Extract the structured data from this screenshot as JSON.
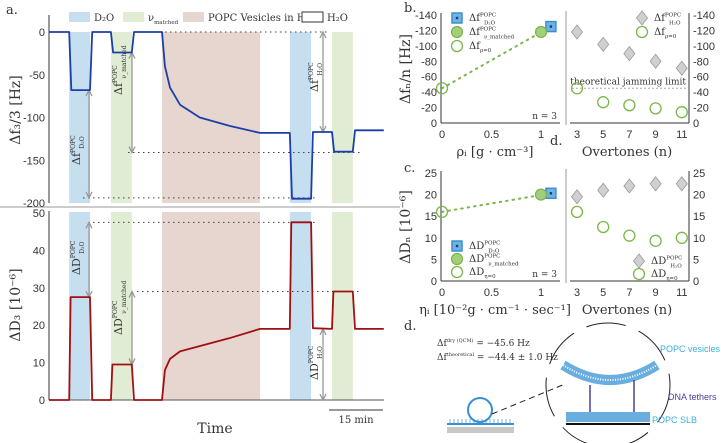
{
  "panel_labels": {
    "a": "a.",
    "b": "b.",
    "c": "c.",
    "d1": "d.",
    "d2": "d."
  },
  "colors": {
    "d2o": "#c5dff0",
    "matched": "#e0ecd3",
    "popc": "#e6d6cf",
    "freq_trace": "#1a3fa8",
    "diss_trace": "#a01010",
    "green": "#7ab648",
    "blue": "#3b8fd0",
    "gray_marker": "#d0d0d0",
    "arrow": "#999999",
    "cyan": "#3ab0d8",
    "purple": "#4a3fa0"
  },
  "chart_data": [
    {
      "id": "a-frequency",
      "type": "line",
      "xlabel": "",
      "ylabel": "Δf₃/3 [Hz]",
      "ylim": [
        -200,
        0
      ],
      "yticks": [
        "0",
        "-50",
        "-100",
        "-150",
        "-200"
      ],
      "ytick_values": [
        0,
        -50,
        -100,
        -150,
        -200
      ],
      "legend": [
        {
          "key": "d2o",
          "label": "D₂O"
        },
        {
          "key": "matched",
          "label": "ν_matched"
        },
        {
          "key": "popc",
          "label": "POPC Vesicles in H₂O"
        },
        {
          "key": "h2o",
          "label": "H₂O"
        }
      ],
      "bands_min": [
        {
          "key": "d2o",
          "start": 5.6,
          "end": 11.4
        },
        {
          "key": "matched",
          "start": 17.2,
          "end": 23.0
        },
        {
          "key": "popc",
          "start": 31.4,
          "end": 58.6
        },
        {
          "key": "d2o",
          "start": 66.9,
          "end": 72.8
        },
        {
          "key": "matched",
          "start": 78.6,
          "end": 84.4
        }
      ],
      "series": [
        {
          "x_min": [
            0,
            5.6,
            6.2,
            11.4,
            12.0,
            17.2,
            17.8,
            23.0,
            23.6,
            31.4,
            32.2,
            33.6,
            36.4,
            41.9,
            50.3,
            58.6,
            66.9,
            67.5,
            72.8,
            73.3,
            78.6,
            79.2,
            84.4,
            85.0,
            93.0
          ],
          "y": [
            0,
            0,
            -68,
            -68,
            0,
            0,
            -24,
            -24,
            0,
            0,
            -40,
            -65,
            -85,
            -100,
            -110,
            -118,
            -118,
            -195,
            -195,
            -117,
            -117,
            -140,
            -140,
            -115,
            -115
          ]
        }
      ],
      "annotations": [
        {
          "base": "Δf",
          "sup": "POPC",
          "sub": "D₂O",
          "color": "blue"
        },
        {
          "base": "Δf",
          "sup": "POPC",
          "sub": "ν_matched",
          "color": "green"
        },
        {
          "base": "Δf",
          "sup": "POPC",
          "sub": "H₂O",
          "color": "arrow"
        }
      ]
    },
    {
      "id": "a-dissipation",
      "type": "line",
      "xlabel": "Time",
      "ylabel": "ΔD₃ [10⁻⁶]",
      "ylim": [
        0,
        50
      ],
      "yticks": [
        "50",
        "40",
        "30",
        "20",
        "10",
        "0"
      ],
      "ytick_values": [
        50,
        40,
        30,
        20,
        10,
        0
      ],
      "scale_bar": "15 min",
      "series": [
        {
          "x_min": [
            0,
            5.6,
            6.0,
            11.4,
            12.0,
            17.2,
            17.6,
            23.0,
            23.6,
            31.4,
            32.2,
            33.6,
            36.4,
            50.0,
            58.6,
            66.9,
            67.3,
            72.8,
            73.3,
            78.6,
            79.0,
            84.4,
            85.0,
            93.0
          ],
          "y": [
            0,
            0,
            27.5,
            27.5,
            0,
            0,
            9.5,
            9.5,
            0,
            0,
            8,
            11,
            13,
            16.5,
            19,
            19,
            47.5,
            47.5,
            19.2,
            19,
            29,
            29,
            19,
            19
          ]
        }
      ],
      "annotations": [
        {
          "base": "ΔD",
          "sup": "POPC",
          "sub": "D₂O",
          "color": "blue"
        },
        {
          "base": "ΔD",
          "sup": "POPC",
          "sub": "ν_matched",
          "color": "green"
        },
        {
          "base": "ΔD",
          "sup": "POPC",
          "sub": "H₂O",
          "color": "arrow"
        }
      ]
    },
    {
      "id": "b-left",
      "type": "scatter",
      "xlabel": "ρᵢ [g · cm⁻³]",
      "ylabel": "Δfₙ/n [Hz]",
      "xlim": [
        0,
        1.2
      ],
      "ylim": [
        0,
        140
      ],
      "xticks": [
        "0",
        "0.5",
        "1"
      ],
      "xtick_values": [
        0,
        0.5,
        1
      ],
      "yticks": [
        "-140",
        "-120",
        "-100",
        "-80",
        "-60",
        "-40",
        "-20",
        "0"
      ],
      "ytick_values": [
        140,
        120,
        100,
        80,
        60,
        40,
        20,
        0
      ],
      "note": "n = 3",
      "points": [
        {
          "x": 1.1,
          "y": 125,
          "marker": "square",
          "legend": {
            "base": "Δf",
            "sup": "POPC",
            "sub": "D₂O"
          }
        },
        {
          "x": 1.0,
          "y": 118,
          "marker": "filled-circle",
          "legend": {
            "base": "Δf",
            "sup": "POPC",
            "sub": "ν_matched"
          }
        },
        {
          "x": 0,
          "y": 45,
          "marker": "open-circle",
          "legend": {
            "base": "Δf",
            "sup": "",
            "sub": "ρ=0"
          }
        }
      ]
    },
    {
      "id": "b-right",
      "type": "scatter",
      "xlabel": "Overtones (n)",
      "xlim": [
        3,
        11
      ],
      "ylim": [
        0,
        140
      ],
      "xticks": [
        "3",
        "5",
        "7",
        "9",
        "11"
      ],
      "xtick_values": [
        3,
        5,
        7,
        9,
        11
      ],
      "yticks": [
        "-140",
        "-120",
        "-100",
        "-80",
        "-60",
        "-40",
        "-20",
        "0"
      ],
      "ytick_values": [
        140,
        120,
        100,
        80,
        60,
        40,
        20,
        0
      ],
      "reference_line": {
        "y": 45,
        "label": "theoretical jamming limit"
      },
      "series": [
        {
          "marker": "diamond",
          "legend": {
            "base": "Δf",
            "sup": "POPC",
            "sub": "H₂O"
          },
          "x": [
            3,
            5,
            7,
            9,
            11
          ],
          "y": [
            118,
            102,
            90,
            80,
            71
          ]
        },
        {
          "marker": "open-circle",
          "legend": {
            "base": "Δf",
            "sup": "",
            "sub": "ρ=0"
          },
          "x": [
            3,
            5,
            7,
            9,
            11
          ],
          "y": [
            45,
            27,
            23,
            19,
            14
          ]
        }
      ]
    },
    {
      "id": "c-left",
      "type": "scatter",
      "xlabel": "ηᵢ [10⁻²g · cm⁻¹ · sec⁻¹]",
      "ylabel": "ΔDₙ [10⁻⁶]",
      "xlim": [
        0,
        1.2
      ],
      "ylim": [
        0,
        25
      ],
      "xticks": [
        "0",
        "0.5",
        "1"
      ],
      "xtick_values": [
        0,
        0.5,
        1
      ],
      "yticks": [
        "25",
        "20",
        "15",
        "10",
        "5",
        "0"
      ],
      "ytick_values": [
        25,
        20,
        15,
        10,
        5,
        0
      ],
      "note": "n = 3",
      "points": [
        {
          "x": 1.1,
          "y": 20.3,
          "marker": "square",
          "legend": {
            "base": "ΔD",
            "sup": "POPC",
            "sub": "D₂O"
          }
        },
        {
          "x": 1.0,
          "y": 20,
          "marker": "filled-circle",
          "legend": {
            "base": "ΔD",
            "sup": "POPC",
            "sub": "ν_matched"
          }
        },
        {
          "x": 0,
          "y": 16,
          "marker": "open-circle",
          "legend": {
            "base": "ΔD",
            "sup": "",
            "sub": "η=0"
          }
        }
      ]
    },
    {
      "id": "c-right",
      "type": "scatter",
      "xlabel": "Overtones (n)",
      "xlim": [
        3,
        11
      ],
      "ylim": [
        0,
        25
      ],
      "xticks": [
        "3",
        "5",
        "7",
        "9",
        "11"
      ],
      "xtick_values": [
        3,
        5,
        7,
        9,
        11
      ],
      "yticks": [
        "25",
        "20",
        "15",
        "10",
        "5",
        "0"
      ],
      "ytick_values": [
        25,
        20,
        15,
        10,
        5,
        0
      ],
      "series": [
        {
          "marker": "diamond",
          "legend": {
            "base": "ΔD",
            "sup": "POPC",
            "sub": "H₂O"
          },
          "x": [
            3,
            5,
            7,
            9,
            11
          ],
          "y": [
            19.5,
            21,
            22,
            22.5,
            22.5
          ]
        },
        {
          "marker": "open-circle",
          "legend": {
            "base": "ΔD",
            "sup": "",
            "sub": "η=0"
          },
          "x": [
            3,
            5,
            7,
            9,
            11
          ],
          "y": [
            16,
            12.5,
            10.5,
            9.3,
            10
          ]
        }
      ]
    }
  ],
  "schematic": {
    "eq1": {
      "base": "Δf",
      "sup": "dry (QCM)",
      "rest": " = −45.6 Hz"
    },
    "eq2": {
      "base": "Δf",
      "sup": "theoretical",
      "rest": " = −44.4 ± 1.0 Hz"
    },
    "label_vesicles": "POPC vesicles",
    "label_tethers": "DNA tethers",
    "label_slb": "POPC SLB"
  }
}
